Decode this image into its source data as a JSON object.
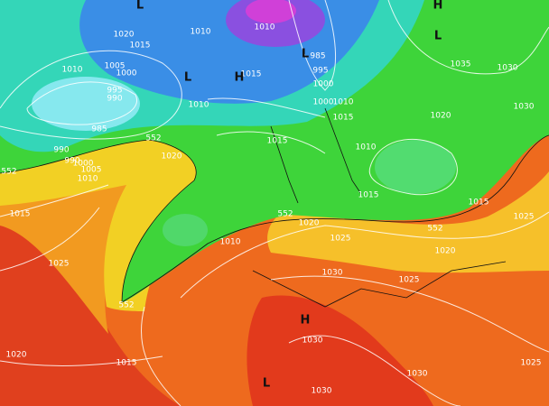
{
  "map": {
    "isobar_labels": [
      "1020",
      "1015",
      "1010",
      "1010",
      "985",
      "1005",
      "1000",
      "1010",
      "995",
      "990",
      "1015",
      "995",
      "1000",
      "1035",
      "1030",
      "1010",
      "1000",
      "1010",
      "1015",
      "1020",
      "1030",
      "985",
      "552",
      "1015",
      "1020",
      "990",
      "990",
      "1000",
      "1005",
      "1010",
      "552",
      "1010",
      "1015",
      "1015",
      "1025",
      "1015",
      "552",
      "1020",
      "1010",
      "1025",
      "552",
      "1020",
      "1025",
      "1030",
      "1025",
      "552",
      "1030",
      "1020",
      "1015",
      "1030",
      "1025",
      "1030"
    ],
    "pressure_centers": [
      "H",
      "L",
      "L",
      "L",
      "H",
      "L",
      "H",
      "L"
    ]
  }
}
